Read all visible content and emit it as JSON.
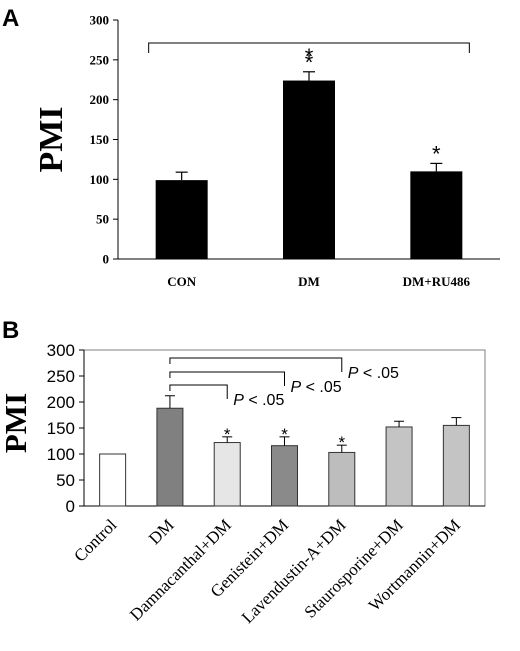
{
  "panel_a_label": "A",
  "panel_b_label": "B",
  "chart_data": [
    {
      "type": "bar",
      "panel": "A",
      "categories": [
        "CON",
        "DM",
        "DM+RU486"
      ],
      "values": [
        99,
        224,
        110
      ],
      "errors": [
        10,
        11,
        10
      ],
      "significance": [
        "",
        "*",
        "*"
      ],
      "title": "",
      "xlabel": "",
      "ylabel": "PMI",
      "ylim": [
        0,
        300
      ],
      "yticks": [
        0,
        50,
        100,
        150,
        200,
        250,
        300
      ],
      "bar_color": "#000000",
      "bracket": {
        "from": 0,
        "to": 2,
        "label": "*"
      },
      "grid": false
    },
    {
      "type": "bar",
      "panel": "B",
      "categories": [
        "Control",
        "DM",
        "Damnacanthal+DM",
        "Genistein+DM",
        "Lavendustin-A+DM",
        "Staurosporine+DM",
        "Wortmannin+DM"
      ],
      "values": [
        100,
        188,
        122,
        116,
        103,
        152,
        155
      ],
      "errors": [
        0,
        24,
        11,
        17,
        14,
        11,
        15
      ],
      "significance": [
        "",
        "",
        "*",
        "*",
        "*",
        "",
        ""
      ],
      "bar_colors": [
        "#ffffff",
        "#808080",
        "#e6e6e6",
        "#8a8a8a",
        "#bdbdbd",
        "#c4c4c4",
        "#c4c4c4"
      ],
      "title": "",
      "xlabel": "",
      "ylabel": "PMI",
      "ylim": [
        0,
        300
      ],
      "yticks": [
        0,
        50,
        100,
        150,
        200,
        250,
        300
      ],
      "brackets": [
        {
          "from": 1,
          "to": 2,
          "label_prefix": "P",
          "label_rest": " < .05"
        },
        {
          "from": 1,
          "to": 3,
          "label_prefix": "P",
          "label_rest": " < .05"
        },
        {
          "from": 1,
          "to": 4,
          "label_prefix": "P",
          "label_rest": " < .05"
        }
      ],
      "grid": false
    }
  ]
}
